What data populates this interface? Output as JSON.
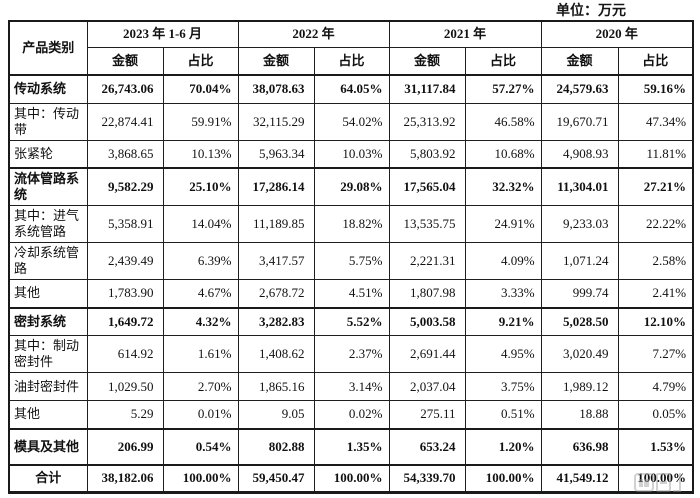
{
  "unit_label": "单位：万元",
  "table": {
    "corner_header": "产品类别",
    "year_groups": [
      {
        "label": "2023 年 1-6 月"
      },
      {
        "label": "2022 年"
      },
      {
        "label": "2021 年"
      },
      {
        "label": "2020 年"
      }
    ],
    "sub_headers": {
      "amount": "金额",
      "ratio": "占比"
    },
    "rows": [
      {
        "label": "传动系统",
        "bold": true,
        "tall": false,
        "center": false,
        "values": [
          "26,743.06",
          "70.04%",
          "38,078.63",
          "64.05%",
          "31,117.84",
          "57.27%",
          "24,579.63",
          "59.16%"
        ]
      },
      {
        "label": "其中：传动带",
        "bold": false,
        "tall": true,
        "center": false,
        "values": [
          "22,874.41",
          "59.91%",
          "32,115.29",
          "54.02%",
          "25,313.92",
          "46.58%",
          "19,670.71",
          "47.34%"
        ]
      },
      {
        "label": "张紧轮",
        "bold": false,
        "tall": false,
        "center": false,
        "values": [
          "3,868.65",
          "10.13%",
          "5,963.34",
          "10.03%",
          "5,803.92",
          "10.68%",
          "4,908.93",
          "11.81%"
        ]
      },
      {
        "label": "流体管路系统",
        "bold": true,
        "tall": true,
        "center": false,
        "values": [
          "9,582.29",
          "25.10%",
          "17,286.14",
          "29.08%",
          "17,565.04",
          "32.32%",
          "11,304.01",
          "27.21%"
        ]
      },
      {
        "label": "其中：进气系统管路",
        "bold": false,
        "tall": true,
        "center": false,
        "values": [
          "5,358.91",
          "14.04%",
          "11,189.85",
          "18.82%",
          "13,535.75",
          "24.91%",
          "9,233.03",
          "22.22%"
        ]
      },
      {
        "label": "冷却系统管路",
        "bold": false,
        "tall": true,
        "center": false,
        "values": [
          "2,439.49",
          "6.39%",
          "3,417.57",
          "5.75%",
          "2,221.31",
          "4.09%",
          "1,071.24",
          "2.58%"
        ]
      },
      {
        "label": "其他",
        "bold": false,
        "tall": false,
        "center": false,
        "values": [
          "1,783.90",
          "4.67%",
          "2,678.72",
          "4.51%",
          "1,807.98",
          "3.33%",
          "999.74",
          "2.41%"
        ]
      },
      {
        "label": "密封系统",
        "bold": true,
        "tall": false,
        "center": false,
        "values": [
          "1,649.72",
          "4.32%",
          "3,282.83",
          "5.52%",
          "5,003.58",
          "9.21%",
          "5,028.50",
          "12.10%"
        ]
      },
      {
        "label": "其中：制动密封件",
        "bold": false,
        "tall": true,
        "center": false,
        "values": [
          "614.92",
          "1.61%",
          "1,408.62",
          "2.37%",
          "2,691.44",
          "4.95%",
          "3,020.49",
          "7.27%"
        ]
      },
      {
        "label": "油封密封件",
        "bold": false,
        "tall": false,
        "center": false,
        "values": [
          "1,029.50",
          "2.70%",
          "1,865.16",
          "3.14%",
          "2,037.04",
          "3.75%",
          "1,989.12",
          "4.79%"
        ]
      },
      {
        "label": "其他",
        "bold": false,
        "tall": false,
        "center": false,
        "values": [
          "5.29",
          "0.01%",
          "9.05",
          "0.02%",
          "275.11",
          "0.51%",
          "18.88",
          "0.05%"
        ]
      },
      {
        "label": "模具及其他",
        "bold": true,
        "tall": true,
        "center": false,
        "values": [
          "206.99",
          "0.54%",
          "802.88",
          "1.35%",
          "653.24",
          "1.20%",
          "636.98",
          "1.53%"
        ]
      },
      {
        "label": "合计",
        "bold": true,
        "tall": false,
        "center": true,
        "values": [
          "38,182.06",
          "100.00%",
          "59,450.47",
          "100.00%",
          "54,339.70",
          "100.00%",
          "41,549.12",
          "100.00%"
        ]
      }
    ]
  }
}
